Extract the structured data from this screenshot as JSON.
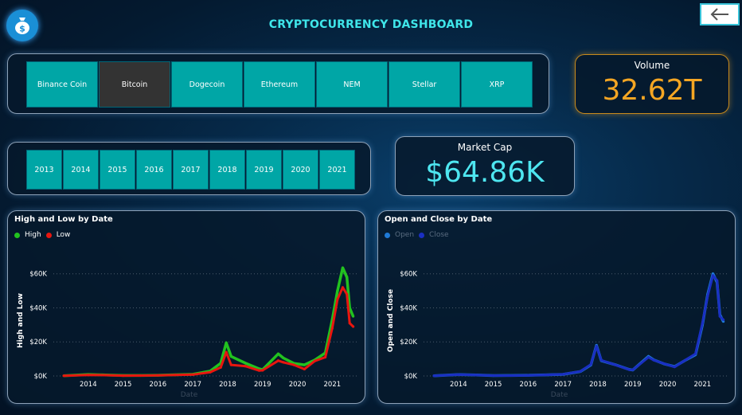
{
  "header": {
    "title": "CRYPTOCURRENCY DASHBOARD",
    "logo_icon": "money-bag-icon",
    "back_icon": "arrow-left-icon"
  },
  "coins": [
    {
      "label": "Binance Coin",
      "selected": false
    },
    {
      "label": "Bitcoin",
      "selected": true
    },
    {
      "label": "Dogecoin",
      "selected": false
    },
    {
      "label": "Ethereum",
      "selected": false
    },
    {
      "label": "NEM",
      "selected": false
    },
    {
      "label": "Stellar",
      "selected": false
    },
    {
      "label": "XRP",
      "selected": false
    }
  ],
  "years": [
    "2013",
    "2014",
    "2015",
    "2016",
    "2017",
    "2018",
    "2019",
    "2020",
    "2021"
  ],
  "volume": {
    "label": "Volume",
    "value": "32.62T",
    "color": "#f5a623"
  },
  "market_cap": {
    "label": "Market Cap",
    "value": "$64.86K",
    "color": "#4ee6f0"
  },
  "colors": {
    "accent": "#00a6a6",
    "high": "#22c21f",
    "low": "#e8160f",
    "open": "#1f7ad6",
    "close": "#1a2fc2"
  },
  "chart_data": [
    {
      "type": "line",
      "title": "High and Low by Date",
      "xlabel": "Date",
      "ylabel": "High and Low",
      "ylim": [
        0,
        65000
      ],
      "yticks": [
        "$0K",
        "$20K",
        "$40K",
        "$60K"
      ],
      "xticks": [
        "2014",
        "2015",
        "2016",
        "2017",
        "2018",
        "2019",
        "2020",
        "2021"
      ],
      "legend": "top-left",
      "series": [
        {
          "name": "High",
          "x": [
            2013.3,
            2014.0,
            2014.5,
            2015.0,
            2015.5,
            2016.0,
            2016.5,
            2017.0,
            2017.5,
            2017.8,
            2017.96,
            2018.1,
            2018.5,
            2018.9,
            2019.0,
            2019.45,
            2019.6,
            2019.9,
            2020.2,
            2020.5,
            2020.8,
            2021.0,
            2021.15,
            2021.3,
            2021.42,
            2021.5,
            2021.6
          ],
          "values": [
            150,
            900,
            600,
            300,
            280,
            420,
            700,
            1000,
            2900,
            7500,
            19500,
            11500,
            7600,
            4200,
            3700,
            13000,
            10500,
            7400,
            6500,
            9400,
            13500,
            33000,
            50000,
            63500,
            58000,
            40000,
            35000
          ]
        },
        {
          "name": "Low",
          "x": [
            2013.3,
            2014.0,
            2014.5,
            2015.0,
            2015.5,
            2016.0,
            2016.5,
            2017.0,
            2017.5,
            2017.8,
            2017.96,
            2018.1,
            2018.5,
            2018.9,
            2019.0,
            2019.45,
            2019.6,
            2019.9,
            2020.2,
            2020.5,
            2020.8,
            2021.0,
            2021.15,
            2021.3,
            2021.42,
            2021.5,
            2021.6
          ],
          "values": [
            100,
            600,
            450,
            200,
            230,
            380,
            600,
            800,
            2200,
            5000,
            14000,
            6500,
            5800,
            3200,
            3300,
            9000,
            8000,
            6500,
            4000,
            8800,
            11000,
            28000,
            45000,
            52000,
            48000,
            31000,
            29000
          ]
        }
      ]
    },
    {
      "type": "line",
      "title": "Open and Close by Date",
      "xlabel": "Date",
      "ylabel": "Open and Close",
      "ylim": [
        0,
        65000
      ],
      "yticks": [
        "$0K",
        "$20K",
        "$40K",
        "$60K"
      ],
      "xticks": [
        "2014",
        "2015",
        "2016",
        "2017",
        "2018",
        "2019",
        "2020",
        "2021"
      ],
      "legend": "top-left",
      "series": [
        {
          "name": "Open",
          "x": [
            2013.3,
            2014.0,
            2014.5,
            2015.0,
            2015.5,
            2016.0,
            2016.5,
            2017.0,
            2017.5,
            2017.8,
            2017.96,
            2018.1,
            2018.5,
            2018.9,
            2019.0,
            2019.45,
            2019.6,
            2019.9,
            2020.2,
            2020.5,
            2020.8,
            2021.0,
            2021.15,
            2021.3,
            2021.42,
            2021.5,
            2021.6
          ],
          "values": [
            120,
            800,
            550,
            250,
            260,
            400,
            650,
            950,
            2600,
            6500,
            18000,
            9000,
            6600,
            3800,
            3500,
            11500,
            9500,
            7100,
            5500,
            9100,
            12500,
            30000,
            48000,
            60000,
            55000,
            36000,
            32000
          ]
        },
        {
          "name": "Close",
          "x": [
            2013.3,
            2014.0,
            2014.5,
            2015.0,
            2015.5,
            2016.0,
            2016.5,
            2017.0,
            2017.5,
            2017.8,
            2017.96,
            2018.1,
            2018.5,
            2018.9,
            2019.0,
            2019.45,
            2019.6,
            2019.9,
            2020.2,
            2020.5,
            2020.8,
            2021.0,
            2021.15,
            2021.3,
            2021.42,
            2021.5,
            2021.6
          ],
          "values": [
            125,
            780,
            540,
            240,
            255,
            395,
            640,
            960,
            2700,
            6800,
            17500,
            9200,
            6500,
            3700,
            3600,
            11000,
            9300,
            7200,
            5300,
            9200,
            13000,
            31000,
            47000,
            59000,
            56000,
            35000,
            33000
          ]
        }
      ]
    }
  ]
}
